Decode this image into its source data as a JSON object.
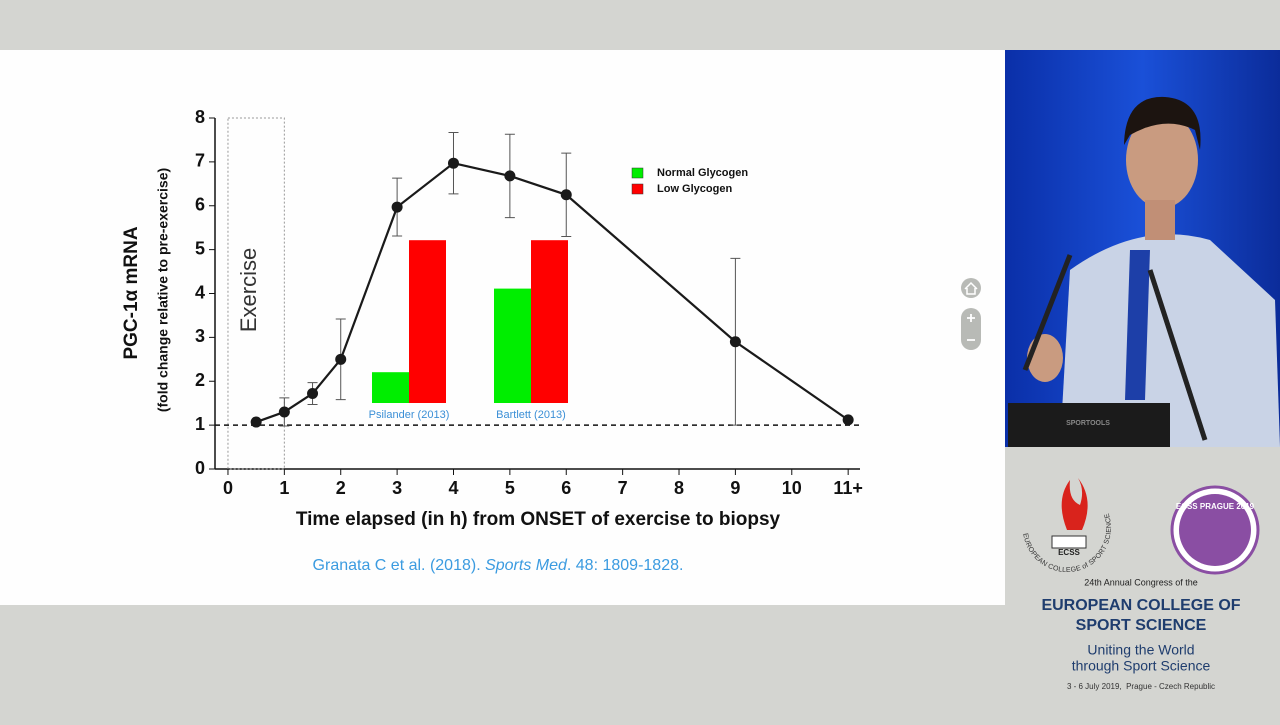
{
  "chart_data": [
    {
      "type": "line",
      "ylabel": "PGC-1α mRNA",
      "ylabel_sub": "(fold change relative to pre-exercise)",
      "xlabel": "Time elapsed (in h) from ONSET of exercise to biopsy",
      "annotation": "Exercise",
      "exercise_span": [
        0,
        1
      ],
      "reference_line": 1,
      "x": [
        0.5,
        1,
        1.5,
        2,
        3,
        4,
        5,
        6,
        9,
        11
      ],
      "values": [
        1.07,
        1.3,
        1.72,
        2.5,
        5.97,
        6.97,
        6.68,
        6.25,
        2.9,
        1.12
      ],
      "errors": [
        null,
        0.32,
        0.25,
        0.92,
        0.66,
        0.7,
        0.95,
        0.95,
        1.9,
        null
      ],
      "color": "#1a1a1a",
      "xlim": [
        -0.23,
        11.21
      ],
      "ylim": [
        0,
        8
      ],
      "xticks": [
        0,
        1,
        2,
        3,
        4,
        5,
        6,
        7,
        8,
        9,
        10,
        {
          "value": 11,
          "label": "11+"
        }
      ],
      "yticks": [
        0,
        1,
        2,
        3,
        4,
        5,
        6,
        7,
        8
      ]
    },
    {
      "type": "bar",
      "categories": [
        "Psilander (2013)",
        "Bartlett (2013)"
      ],
      "series": [
        {
          "name": "Normal Glycogen",
          "color": "#00ee00",
          "values": [
            0.7,
            2.6
          ]
        },
        {
          "name": "Low Glycogen",
          "color": "#ff0000",
          "values": [
            3.7,
            3.7
          ]
        }
      ],
      "ylim": [
        0,
        4
      ]
    }
  ],
  "citation": [
    "Granata C et al. (2018). ",
    "Sports Med",
    ". 48: 1809-1828."
  ],
  "branding": {
    "logo_text": "ECSS",
    "ring_text": "EUROPEAN COLLEGE of SPORT SCIENCE",
    "badge": "ECSS PRAGUE 2019",
    "congress": "24th Annual Congress of the",
    "org_line1": "EUROPEAN COLLEGE OF",
    "org_line2": "SPORT SCIENCE",
    "motto_line1": "Uniting the World",
    "motto_line2": "through Sport Science",
    "dates": "3 - 6 July 2019,  Prague - Czech Republic",
    "laptop_brand": "SPORTOOLS"
  }
}
